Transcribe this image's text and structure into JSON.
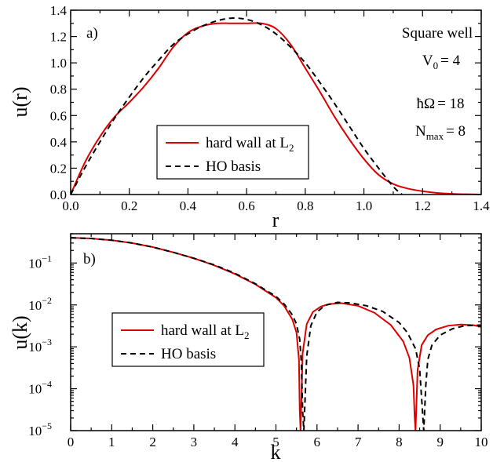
{
  "chart_data": [
    {
      "type": "line",
      "panel_label": "a)",
      "xlabel": "r",
      "ylabel": "u(r)",
      "xlim": [
        0,
        1.4
      ],
      "ylim": [
        0,
        1.4
      ],
      "xticks": [
        "0.0",
        "0.2",
        "0.4",
        "0.6",
        "0.8",
        "1.0",
        "1.2",
        "1.4"
      ],
      "yticks": [
        "0.0",
        "0.2",
        "0.4",
        "0.6",
        "0.8",
        "1.0",
        "1.2",
        "1.4"
      ],
      "annotations": {
        "title": "Square well",
        "v0_sym": "V",
        "v0_sub": "0",
        "v0_val": "= 4",
        "hw_sym": "ħΩ",
        "hw_val": "= 18",
        "nmax_sym": "N",
        "nmax_sub": "max",
        "nmax_val": "= 8"
      },
      "legend_position": "lower-center",
      "series": [
        {
          "name": "hard wall at L",
          "name_sub": "2",
          "color": "#dd0000",
          "dash": "solid",
          "x": [
            0,
            0.05,
            0.1,
            0.15,
            0.2,
            0.25,
            0.3,
            0.35,
            0.4,
            0.45,
            0.5,
            0.55,
            0.6,
            0.65,
            0.7,
            0.75,
            0.8,
            0.85,
            0.9,
            0.95,
            1.0,
            1.05,
            1.1,
            1.15,
            1.2,
            1.25,
            1.3,
            1.35,
            1.4
          ],
          "y": [
            0,
            0.25,
            0.44,
            0.59,
            0.7,
            0.82,
            0.96,
            1.12,
            1.23,
            1.28,
            1.3,
            1.3,
            1.3,
            1.3,
            1.26,
            1.14,
            0.96,
            0.78,
            0.59,
            0.42,
            0.27,
            0.15,
            0.08,
            0.045,
            0.025,
            0.012,
            0.005,
            0.002,
            0
          ]
        },
        {
          "name": "HO basis",
          "color": "#000000",
          "dash": "dashed",
          "x": [
            0,
            0.05,
            0.1,
            0.15,
            0.2,
            0.25,
            0.3,
            0.35,
            0.4,
            0.45,
            0.5,
            0.55,
            0.6,
            0.65,
            0.7,
            0.75,
            0.8,
            0.85,
            0.9,
            0.95,
            1.0,
            1.05,
            1.1,
            1.13
          ],
          "y": [
            0,
            0.21,
            0.4,
            0.58,
            0.74,
            0.89,
            1.02,
            1.14,
            1.22,
            1.28,
            1.32,
            1.34,
            1.33,
            1.29,
            1.22,
            1.12,
            1.0,
            0.85,
            0.69,
            0.52,
            0.35,
            0.2,
            0.06,
            0
          ]
        }
      ]
    },
    {
      "type": "line",
      "panel_label": "b)",
      "xlabel": "k",
      "ylabel": "u(k)",
      "xlim": [
        0,
        10
      ],
      "ylim": [
        1e-05,
        0.5
      ],
      "yscale": "log",
      "xticks": [
        "0",
        "1",
        "2",
        "3",
        "4",
        "5",
        "6",
        "7",
        "8",
        "9",
        "10"
      ],
      "yticks": [
        {
          "base": "10",
          "exp": "−5"
        },
        {
          "base": "10",
          "exp": "−4"
        },
        {
          "base": "10",
          "exp": "−3"
        },
        {
          "base": "10",
          "exp": "−2"
        },
        {
          "base": "10",
          "exp": "−1"
        }
      ],
      "legend_position": "lower-left",
      "series": [
        {
          "name": "hard wall at L",
          "name_sub": "2",
          "color": "#dd0000",
          "dash": "solid",
          "x": [
            0,
            0.5,
            1,
            1.5,
            2,
            2.5,
            3,
            3.5,
            4,
            4.5,
            5,
            5.2,
            5.4,
            5.5,
            5.56,
            5.58,
            5.6,
            5.65,
            5.75,
            5.9,
            6.1,
            6.3,
            6.6,
            7,
            7.4,
            7.8,
            8.1,
            8.25,
            8.35,
            8.38,
            8.4,
            8.45,
            8.55,
            8.7,
            8.9,
            9.2,
            9.5,
            9.8,
            10
          ],
          "y": [
            0.4,
            0.385,
            0.35,
            0.3,
            0.24,
            0.18,
            0.13,
            0.088,
            0.055,
            0.031,
            0.015,
            0.0095,
            0.0045,
            0.0022,
            0.0005,
            3e-05,
            1e-05,
            0.0007,
            0.0035,
            0.0068,
            0.0092,
            0.0105,
            0.011,
            0.0095,
            0.0065,
            0.0033,
            0.00135,
            0.00055,
            0.00012,
            2e-05,
            1e-05,
            0.00028,
            0.0011,
            0.0019,
            0.0026,
            0.0032,
            0.0034,
            0.0033,
            0.003
          ]
        },
        {
          "name": "HO basis",
          "color": "#000000",
          "dash": "dashed",
          "x": [
            0,
            0.5,
            1,
            1.5,
            2,
            2.5,
            3,
            3.5,
            4,
            4.5,
            5,
            5.2,
            5.4,
            5.5,
            5.58,
            5.62,
            5.65,
            5.68,
            5.75,
            5.85,
            6.0,
            6.2,
            6.5,
            6.8,
            7.2,
            7.6,
            8.0,
            8.2,
            8.4,
            8.5,
            8.56,
            8.6,
            8.65,
            8.7,
            8.8,
            9.0,
            9.3,
            9.6,
            10
          ],
          "y": [
            0.4,
            0.385,
            0.35,
            0.3,
            0.24,
            0.18,
            0.13,
            0.09,
            0.057,
            0.032,
            0.016,
            0.0105,
            0.0058,
            0.0035,
            0.0015,
            0.0004,
            3e-05,
            1e-05,
            0.0006,
            0.0032,
            0.0068,
            0.0098,
            0.0115,
            0.0112,
            0.0096,
            0.007,
            0.0038,
            0.0022,
            0.0009,
            0.0003,
            4e-05,
            1e-05,
            0.00012,
            0.0005,
            0.0011,
            0.0019,
            0.0027,
            0.0032,
            0.0033
          ]
        }
      ]
    }
  ]
}
